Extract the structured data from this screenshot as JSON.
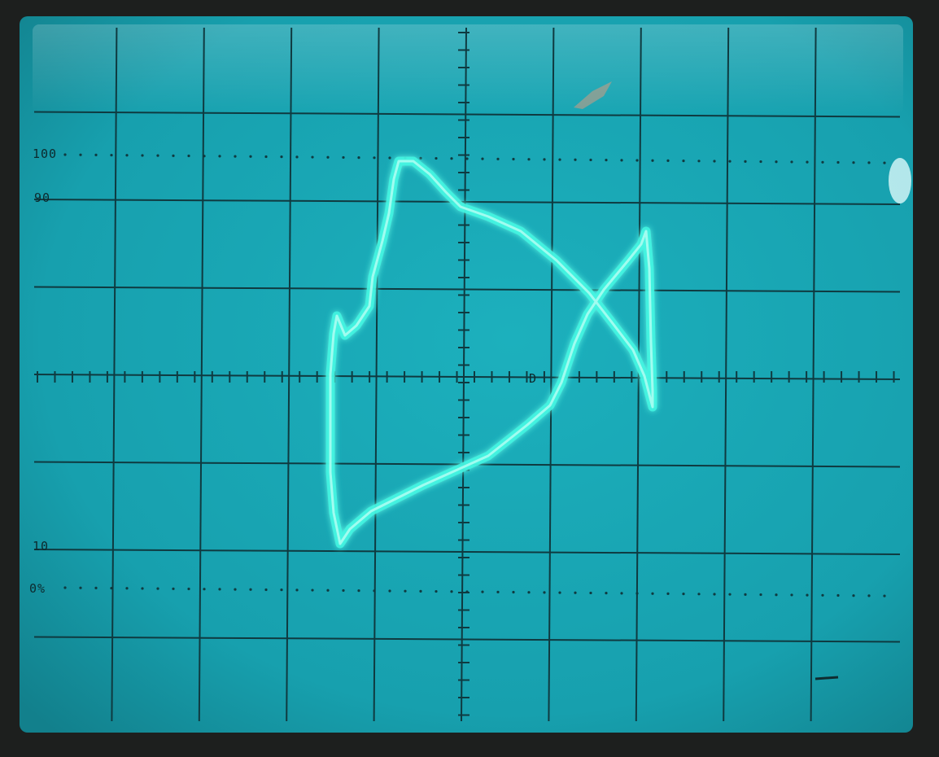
{
  "graticule_labels": {
    "top_ref": "100",
    "upper_ref": "90",
    "lower_ref": "10",
    "bottom_ref": "0%"
  },
  "center_mark": "D",
  "colors": {
    "screen": "#1aa9b6",
    "screen_dark": "#1592a0",
    "graticule": "#0f3a40",
    "trace": "#3ff6e2",
    "trace_core": "#b9fff4",
    "bezel": "#1d1f1e"
  }
}
